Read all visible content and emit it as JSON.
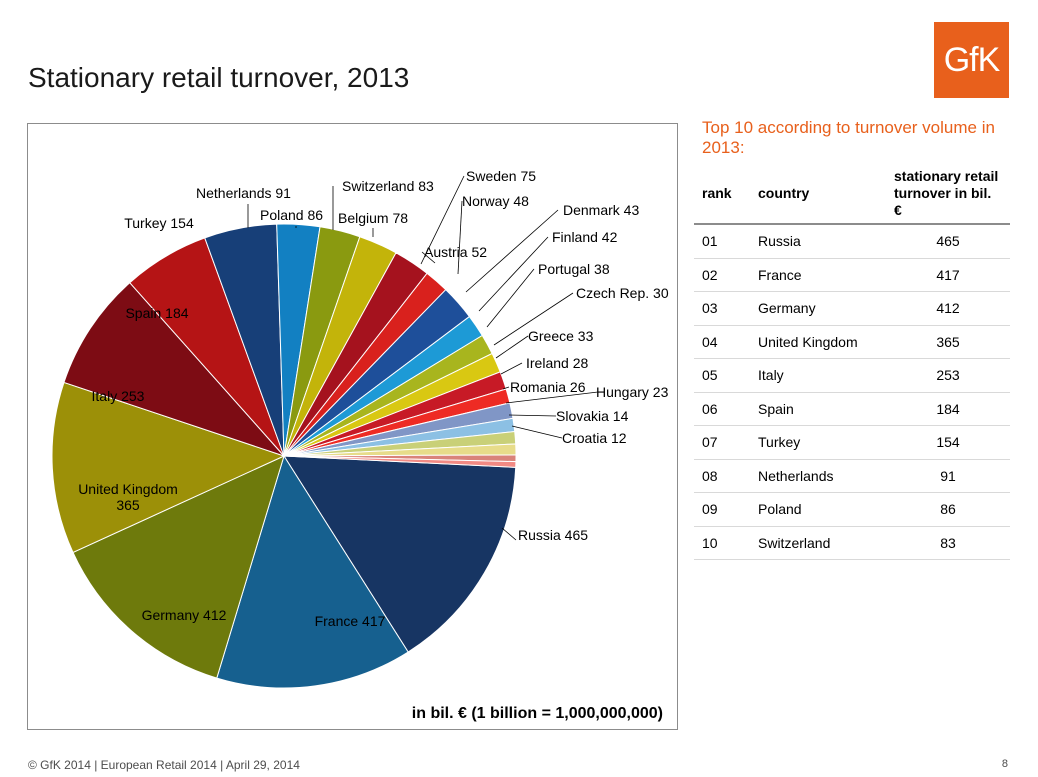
{
  "page": {
    "title": "Stationary retail turnover, 2013",
    "logo": "GfK",
    "footer": "© GfK 2014 | European Retail 2014 | April 29, 2014",
    "page_number": "8"
  },
  "chart_data": {
    "type": "pie",
    "title": "",
    "unit_note": "in bil. € (1 billion = 1,000,000,000)",
    "slices": [
      {
        "label": "Russia",
        "value": 465,
        "color": "#173563"
      },
      {
        "label": "France",
        "value": 417,
        "color": "#16608f"
      },
      {
        "label": "Germany",
        "value": 412,
        "color": "#6e7a0c"
      },
      {
        "label": "United Kingdom",
        "value": 365,
        "color": "#9c9008"
      },
      {
        "label": "Italy",
        "value": 253,
        "color": "#7d0c14"
      },
      {
        "label": "Spain",
        "value": 184,
        "color": "#b51415"
      },
      {
        "label": "Turkey",
        "value": 154,
        "color": "#173f78"
      },
      {
        "label": "Netherlands",
        "value": 91,
        "color": "#1280c2"
      },
      {
        "label": "Poland",
        "value": 86,
        "color": "#8a9a10"
      },
      {
        "label": "Switzerland",
        "value": 83,
        "color": "#c3b40a"
      },
      {
        "label": "Belgium",
        "value": 78,
        "color": "#a5121e"
      },
      {
        "label": "Austria",
        "value": 52,
        "color": "#d9211d"
      },
      {
        "label": "Sweden",
        "value": 75,
        "color": "#1e4f9a"
      },
      {
        "label": "Norway",
        "value": 48,
        "color": "#1d9ad6"
      },
      {
        "label": "Denmark",
        "value": 43,
        "color": "#a8b51e"
      },
      {
        "label": "Finland",
        "value": 42,
        "color": "#d9c812"
      },
      {
        "label": "Portugal",
        "value": 38,
        "color": "#c71a26"
      },
      {
        "label": "Czech Rep.",
        "value": 30,
        "color": "#ee2b24"
      },
      {
        "label": "Greece",
        "value": 33,
        "color": "#8096c6"
      },
      {
        "label": "Ireland",
        "value": 28,
        "color": "#8cc0e4"
      },
      {
        "label": "Romania",
        "value": 26,
        "color": "#c9d078"
      },
      {
        "label": "Hungary",
        "value": 23,
        "color": "#e7dc8a"
      },
      {
        "label": "Slovakia",
        "value": 14,
        "color": "#d9837a"
      },
      {
        "label": "Croatia",
        "value": 12,
        "color": "#f28a84"
      }
    ]
  },
  "top10": {
    "heading": "Top 10 according to turnover volume in 2013:",
    "columns": [
      "rank",
      "country",
      "stationary retail turnover in bil. €"
    ],
    "rows": [
      {
        "rank": "01",
        "country": "Russia",
        "value": "465"
      },
      {
        "rank": "02",
        "country": "France",
        "value": "417"
      },
      {
        "rank": "03",
        "country": "Germany",
        "value": "412"
      },
      {
        "rank": "04",
        "country": "United Kingdom",
        "value": "365"
      },
      {
        "rank": "05",
        "country": "Italy",
        "value": "253"
      },
      {
        "rank": "06",
        "country": "Spain",
        "value": "184"
      },
      {
        "rank": "07",
        "country": "Turkey",
        "value": "154"
      },
      {
        "rank": "08",
        "country": "Netherlands",
        "value": "91"
      },
      {
        "rank": "09",
        "country": "Poland",
        "value": "86"
      },
      {
        "rank": "10",
        "country": "Switzerland",
        "value": "83"
      }
    ]
  }
}
